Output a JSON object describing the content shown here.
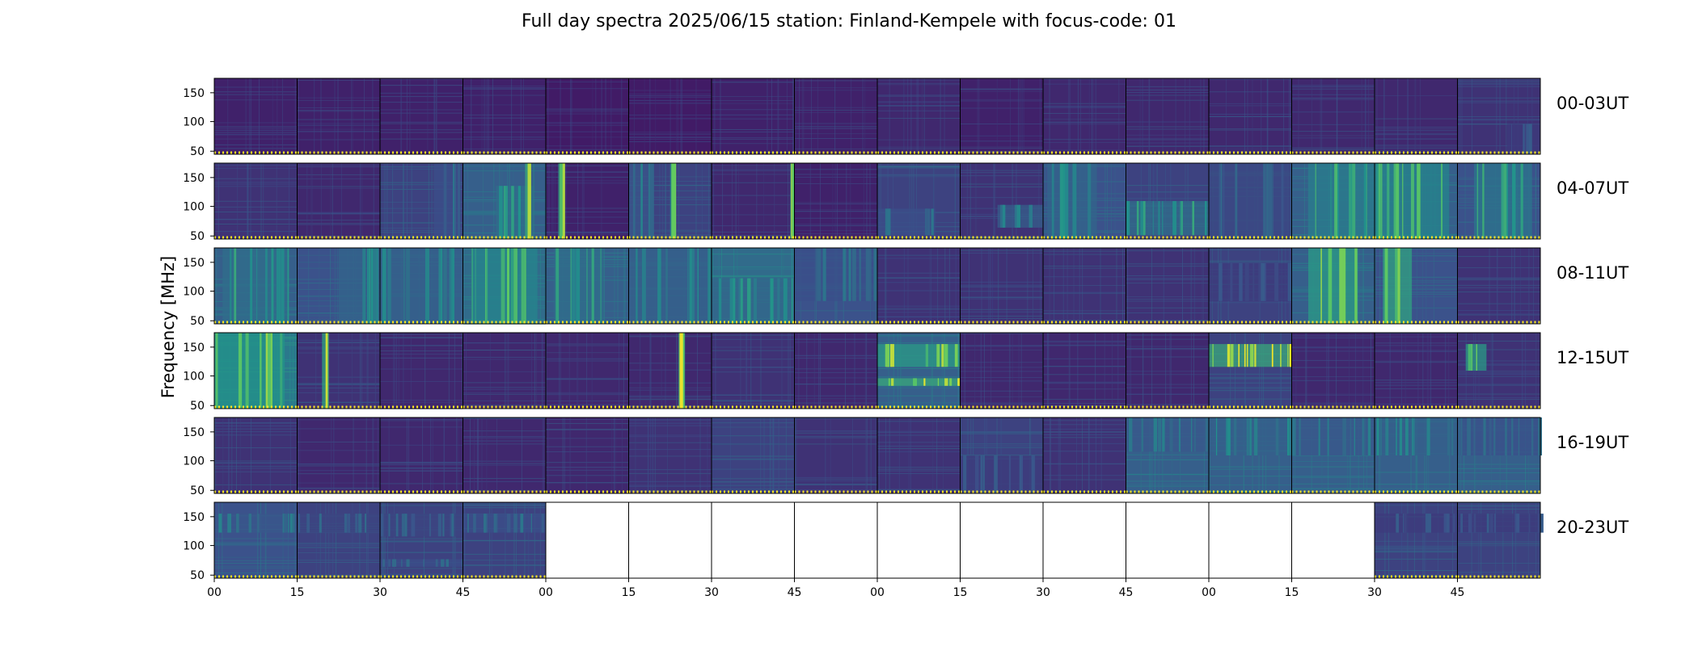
{
  "chart_data": {
    "type": "heatmap",
    "title": "Full day spectra 2025/06/15 station: Finland-Kempele with focus-code: 01",
    "ylabel": "Frequency [MHz]",
    "yticks": [
      "150",
      "100",
      "50"
    ],
    "xticks": [
      "00",
      "15",
      "30",
      "45",
      "00",
      "15",
      "30",
      "45",
      "00",
      "15",
      "30",
      "45",
      "00",
      "15",
      "30",
      "45"
    ],
    "rows": [
      {
        "label": "00-03UT",
        "panels": [
          {
            "level": 0.1,
            "bursts": []
          },
          {
            "level": 0.1,
            "bursts": []
          },
          {
            "level": 0.1,
            "bursts": []
          },
          {
            "level": 0.1,
            "bursts": []
          },
          {
            "level": 0.08,
            "bursts": []
          },
          {
            "level": 0.08,
            "bursts": []
          },
          {
            "level": 0.1,
            "bursts": []
          },
          {
            "level": 0.1,
            "bursts": []
          },
          {
            "level": 0.12,
            "bursts": []
          },
          {
            "level": 0.1,
            "bursts": []
          },
          {
            "level": 0.12,
            "bursts": []
          },
          {
            "level": 0.12,
            "bursts": []
          },
          {
            "level": 0.12,
            "bursts": []
          },
          {
            "level": 0.12,
            "bursts": []
          },
          {
            "level": 0.12,
            "bursts": []
          },
          {
            "level": 0.15,
            "bursts": [
              {
                "x": 0.6,
                "w": 0.4,
                "f0": 0.0,
                "f1": 0.4,
                "v": 0.3
              }
            ]
          }
        ]
      },
      {
        "label": "04-07UT",
        "panels": [
          {
            "level": 0.15,
            "bursts": []
          },
          {
            "level": 0.12,
            "bursts": []
          },
          {
            "level": 0.2,
            "bursts": [
              {
                "x": 0.65,
                "w": 0.3,
                "f0": 0.0,
                "f1": 1.0,
                "v": 0.4
              }
            ]
          },
          {
            "level": 0.3,
            "bursts": [
              {
                "x": 0.4,
                "w": 0.45,
                "f0": 0.0,
                "f1": 0.7,
                "v": 0.6
              },
              {
                "x": 0.75,
                "w": 0.06,
                "f0": 0.0,
                "f1": 1.0,
                "v": 1.0
              }
            ]
          },
          {
            "level": 0.1,
            "bursts": [
              {
                "x": 0.15,
                "w": 0.06,
                "f0": 0.0,
                "f1": 1.0,
                "v": 0.95
              }
            ]
          },
          {
            "level": 0.2,
            "bursts": [
              {
                "x": 0.0,
                "w": 0.3,
                "f0": 0.0,
                "f1": 1.0,
                "v": 0.45
              },
              {
                "x": 0.5,
                "w": 0.05,
                "f0": 0.0,
                "f1": 1.0,
                "v": 0.8
              }
            ]
          },
          {
            "level": 0.12,
            "bursts": [
              {
                "x": 0.95,
                "w": 0.05,
                "f0": 0.0,
                "f1": 1.0,
                "v": 1.0
              }
            ]
          },
          {
            "level": 0.1,
            "bursts": []
          },
          {
            "level": 0.2,
            "bursts": [
              {
                "x": 0.0,
                "w": 0.7,
                "f0": 0.05,
                "f1": 0.4,
                "v": 0.4
              }
            ]
          },
          {
            "level": 0.15,
            "bursts": [
              {
                "x": 0.45,
                "w": 0.55,
                "f0": 0.15,
                "f1": 0.45,
                "v": 0.5
              }
            ]
          },
          {
            "level": 0.25,
            "bursts": [
              {
                "x": 0.05,
                "w": 0.6,
                "f0": 0.0,
                "f1": 1.0,
                "v": 0.55
              }
            ]
          },
          {
            "level": 0.2,
            "bursts": [
              {
                "x": 0.0,
                "w": 1.0,
                "f0": 0.05,
                "f1": 0.5,
                "v": 0.6
              }
            ]
          },
          {
            "level": 0.25,
            "bursts": [
              {
                "x": 0.0,
                "w": 1.0,
                "f0": 0.0,
                "f1": 1.0,
                "v": 0.35
              }
            ]
          },
          {
            "level": 0.3,
            "bursts": [
              {
                "x": 0.2,
                "w": 0.8,
                "f0": 0.0,
                "f1": 1.0,
                "v": 0.7
              }
            ]
          },
          {
            "level": 0.3,
            "bursts": [
              {
                "x": 0.0,
                "w": 0.9,
                "f0": 0.0,
                "f1": 1.0,
                "v": 0.75
              }
            ]
          },
          {
            "level": 0.25,
            "bursts": [
              {
                "x": 0.2,
                "w": 0.7,
                "f0": 0.0,
                "f1": 1.0,
                "v": 0.65
              }
            ]
          }
        ]
      },
      {
        "label": "08-11UT",
        "panels": [
          {
            "level": 0.3,
            "bursts": [
              {
                "x": 0.1,
                "w": 0.8,
                "f0": 0.0,
                "f1": 1.0,
                "v": 0.6
              }
            ]
          },
          {
            "level": 0.25,
            "bursts": [
              {
                "x": 0.5,
                "w": 0.5,
                "f0": 0.0,
                "f1": 1.0,
                "v": 0.55
              }
            ]
          },
          {
            "level": 0.3,
            "bursts": [
              {
                "x": 0.0,
                "w": 1.0,
                "f0": 0.0,
                "f1": 1.0,
                "v": 0.5
              }
            ]
          },
          {
            "level": 0.35,
            "bursts": [
              {
                "x": 0.1,
                "w": 0.8,
                "f0": 0.0,
                "f1": 1.0,
                "v": 0.75
              }
            ]
          },
          {
            "level": 0.3,
            "bursts": [
              {
                "x": 0.1,
                "w": 0.6,
                "f0": 0.0,
                "f1": 1.0,
                "v": 0.6
              }
            ]
          },
          {
            "level": 0.3,
            "bursts": [
              {
                "x": 0.0,
                "w": 1.0,
                "f0": 0.0,
                "f1": 1.0,
                "v": 0.5
              }
            ]
          },
          {
            "level": 0.35,
            "bursts": [
              {
                "x": 0.0,
                "w": 1.0,
                "f0": 0.0,
                "f1": 0.6,
                "v": 0.55
              }
            ]
          },
          {
            "level": 0.25,
            "bursts": [
              {
                "x": 0.0,
                "w": 1.0,
                "f0": 0.3,
                "f1": 1.0,
                "v": 0.4
              }
            ]
          },
          {
            "level": 0.15,
            "bursts": []
          },
          {
            "level": 0.15,
            "bursts": []
          },
          {
            "level": 0.15,
            "bursts": []
          },
          {
            "level": 0.15,
            "bursts": []
          },
          {
            "level": 0.2,
            "bursts": [
              {
                "x": 0.0,
                "w": 1.0,
                "f0": 0.3,
                "f1": 0.8,
                "v": 0.3
              }
            ]
          },
          {
            "level": 0.3,
            "bursts": [
              {
                "x": 0.2,
                "w": 0.6,
                "f0": 0.0,
                "f1": 1.0,
                "v": 0.9
              }
            ]
          },
          {
            "level": 0.25,
            "bursts": [
              {
                "x": 0.1,
                "w": 0.35,
                "f0": 0.0,
                "f1": 1.0,
                "v": 0.95
              }
            ]
          },
          {
            "level": 0.15,
            "bursts": []
          }
        ]
      },
      {
        "label": "12-15UT",
        "panels": [
          {
            "level": 0.4,
            "bursts": [
              {
                "x": 0.0,
                "w": 0.85,
                "f0": 0.0,
                "f1": 1.0,
                "v": 0.85
              }
            ]
          },
          {
            "level": 0.15,
            "bursts": [
              {
                "x": 0.3,
                "w": 0.08,
                "f0": 0.0,
                "f1": 1.0,
                "v": 0.95
              }
            ]
          },
          {
            "level": 0.12,
            "bursts": []
          },
          {
            "level": 0.12,
            "bursts": []
          },
          {
            "level": 0.12,
            "bursts": []
          },
          {
            "level": 0.12,
            "bursts": [
              {
                "x": 0.6,
                "w": 0.08,
                "f0": 0.0,
                "f1": 1.0,
                "v": 1.0
              }
            ]
          },
          {
            "level": 0.15,
            "bursts": []
          },
          {
            "level": 0.12,
            "bursts": []
          },
          {
            "level": 0.3,
            "bursts": [
              {
                "x": 0.0,
                "w": 1.0,
                "f0": 0.55,
                "f1": 0.85,
                "v": 0.9
              },
              {
                "x": 0.0,
                "w": 1.0,
                "f0": 0.3,
                "f1": 0.4,
                "v": 1.0
              }
            ]
          },
          {
            "level": 0.12,
            "bursts": []
          },
          {
            "level": 0.12,
            "bursts": []
          },
          {
            "level": 0.12,
            "bursts": []
          },
          {
            "level": 0.2,
            "bursts": [
              {
                "x": 0.0,
                "w": 1.0,
                "f0": 0.55,
                "f1": 0.85,
                "v": 1.0
              }
            ]
          },
          {
            "level": 0.12,
            "bursts": []
          },
          {
            "level": 0.12,
            "bursts": []
          },
          {
            "level": 0.15,
            "bursts": [
              {
                "x": 0.1,
                "w": 0.25,
                "f0": 0.5,
                "f1": 0.85,
                "v": 0.9
              }
            ]
          }
        ]
      },
      {
        "label": "16-19UT",
        "panels": [
          {
            "level": 0.15,
            "bursts": []
          },
          {
            "level": 0.12,
            "bursts": []
          },
          {
            "level": 0.12,
            "bursts": []
          },
          {
            "level": 0.12,
            "bursts": []
          },
          {
            "level": 0.12,
            "bursts": []
          },
          {
            "level": 0.15,
            "bursts": []
          },
          {
            "level": 0.2,
            "bursts": []
          },
          {
            "level": 0.15,
            "bursts": []
          },
          {
            "level": 0.15,
            "bursts": []
          },
          {
            "level": 0.2,
            "bursts": [
              {
                "x": 0.0,
                "w": 1.0,
                "f0": 0.0,
                "f1": 0.5,
                "v": 0.3
              }
            ]
          },
          {
            "level": 0.15,
            "bursts": []
          },
          {
            "level": 0.3,
            "bursts": [
              {
                "x": 0.0,
                "w": 1.0,
                "f0": 0.55,
                "f1": 1.0,
                "v": 0.45
              }
            ]
          },
          {
            "level": 0.3,
            "bursts": [
              {
                "x": 0.0,
                "w": 1.0,
                "f0": 0.5,
                "f1": 1.0,
                "v": 0.5
              }
            ]
          },
          {
            "level": 0.3,
            "bursts": [
              {
                "x": 0.0,
                "w": 1.0,
                "f0": 0.5,
                "f1": 1.0,
                "v": 0.45
              }
            ]
          },
          {
            "level": 0.3,
            "bursts": [
              {
                "x": 0.0,
                "w": 1.0,
                "f0": 0.5,
                "f1": 1.0,
                "v": 0.5
              }
            ]
          },
          {
            "level": 0.3,
            "bursts": [
              {
                "x": 0.0,
                "w": 1.0,
                "f0": 0.5,
                "f1": 1.0,
                "v": 0.4
              }
            ]
          }
        ]
      },
      {
        "label": "20-23UT",
        "panels": [
          {
            "level": 0.25,
            "bursts": [
              {
                "x": 0.0,
                "w": 1.0,
                "f0": 0.6,
                "f1": 0.85,
                "v": 0.45
              }
            ]
          },
          {
            "level": 0.2,
            "bursts": [
              {
                "x": 0.0,
                "w": 1.0,
                "f0": 0.6,
                "f1": 0.85,
                "v": 0.35
              }
            ]
          },
          {
            "level": 0.2,
            "bursts": [
              {
                "x": 0.0,
                "w": 1.0,
                "f0": 0.55,
                "f1": 0.85,
                "v": 0.35
              },
              {
                "x": 0.0,
                "w": 1.0,
                "f0": 0.15,
                "f1": 0.25,
                "v": 0.4
              }
            ]
          },
          {
            "level": 0.2,
            "bursts": [
              {
                "x": 0.0,
                "w": 1.0,
                "f0": 0.6,
                "f1": 0.85,
                "v": 0.4
              }
            ]
          },
          null,
          null,
          null,
          null,
          null,
          null,
          null,
          null,
          null,
          null,
          {
            "level": 0.2,
            "bursts": [
              {
                "x": 0.0,
                "w": 1.0,
                "f0": 0.6,
                "f1": 0.85,
                "v": 0.3
              }
            ]
          },
          {
            "level": 0.2,
            "bursts": [
              {
                "x": 0.0,
                "w": 1.0,
                "f0": 0.6,
                "f1": 0.85,
                "v": 0.3
              }
            ]
          }
        ]
      }
    ]
  }
}
